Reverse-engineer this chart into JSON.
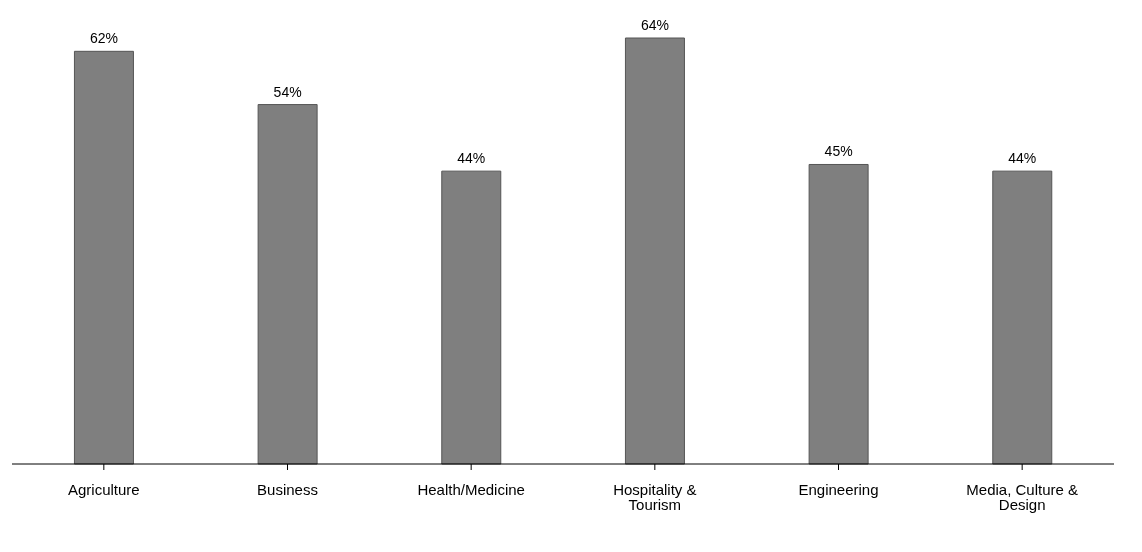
{
  "chart_data": {
    "type": "bar",
    "categories": [
      "Agriculture",
      "Business",
      "Health/Medicine",
      "Hospitality & Tourism",
      "Engineering",
      "Media, Culture & Design"
    ],
    "values": [
      62,
      54,
      44,
      64,
      45,
      44
    ],
    "value_labels": [
      "62%",
      "54%",
      "44%",
      "64%",
      "45%",
      "44%"
    ],
    "color": "#7f7f7f",
    "grid": false,
    "legend": false
  }
}
